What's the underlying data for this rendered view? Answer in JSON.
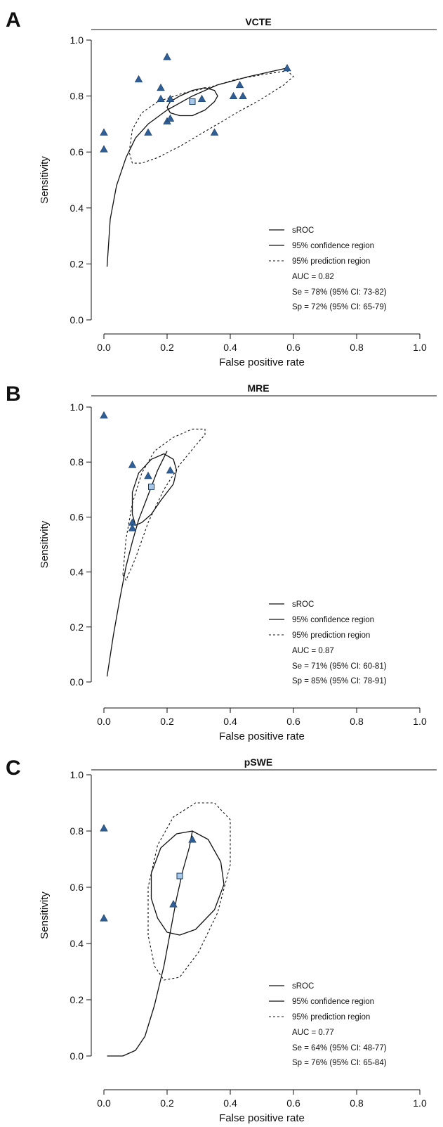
{
  "chart_data": [
    {
      "type": "scatter",
      "panel_label": "A",
      "title": "VCTE",
      "xlabel": "False positive rate",
      "ylabel": "Sensitivity",
      "xlim": [
        0,
        1
      ],
      "ylim": [
        0,
        1
      ],
      "xticks": [
        0.0,
        0.2,
        0.4,
        0.6,
        0.8,
        1.0
      ],
      "xtick_labels": [
        "0.0",
        "0.2",
        "0.4",
        "0.6",
        "0.8",
        "1.0"
      ],
      "yticks": [
        0.0,
        0.2,
        0.4,
        0.6,
        0.8,
        1.0
      ],
      "ytick_labels": [
        "0.0",
        "0.2",
        "0.4",
        "0.6",
        "0.8",
        "1.0"
      ],
      "grid": false,
      "legend_position": "bottom-right",
      "colors": {
        "study_marker": "#2f5f97",
        "summary_point": "#a9c8e8",
        "line": "#111111"
      },
      "studies": {
        "x": [
          0.0,
          0.0,
          0.11,
          0.14,
          0.18,
          0.18,
          0.2,
          0.2,
          0.21,
          0.21,
          0.31,
          0.35,
          0.41,
          0.43,
          0.44,
          0.58
        ],
        "y": [
          0.67,
          0.61,
          0.86,
          0.67,
          0.83,
          0.79,
          0.94,
          0.71,
          0.79,
          0.72,
          0.79,
          0.67,
          0.8,
          0.84,
          0.8,
          0.9
        ]
      },
      "summary_point": {
        "x": 0.28,
        "y": 0.78
      },
      "sroc": {
        "x": [
          0.01,
          0.02,
          0.04,
          0.07,
          0.1,
          0.14,
          0.2,
          0.28,
          0.36,
          0.46,
          0.58
        ],
        "y": [
          0.19,
          0.36,
          0.48,
          0.58,
          0.65,
          0.7,
          0.75,
          0.8,
          0.84,
          0.87,
          0.9
        ]
      },
      "confidence_region": {
        "x": [
          0.2,
          0.21,
          0.24,
          0.28,
          0.32,
          0.35,
          0.36,
          0.35,
          0.32,
          0.28,
          0.24,
          0.21,
          0.2
        ],
        "y": [
          0.76,
          0.78,
          0.8,
          0.82,
          0.83,
          0.82,
          0.8,
          0.78,
          0.75,
          0.73,
          0.73,
          0.74,
          0.76
        ]
      },
      "prediction_region": {
        "x": [
          0.08,
          0.09,
          0.12,
          0.17,
          0.25,
          0.33,
          0.42,
          0.52,
          0.58,
          0.6,
          0.57,
          0.5,
          0.42,
          0.33,
          0.24,
          0.17,
          0.12,
          0.09,
          0.08
        ],
        "y": [
          0.6,
          0.68,
          0.74,
          0.78,
          0.81,
          0.83,
          0.86,
          0.88,
          0.89,
          0.87,
          0.84,
          0.79,
          0.74,
          0.68,
          0.62,
          0.58,
          0.56,
          0.56,
          0.6
        ]
      },
      "legend": {
        "sroc": "sROC",
        "confidence": "95% confidence region",
        "prediction": "95% prediction region"
      },
      "stats": {
        "auc": "AUC = 0.82",
        "se": "Se = 78% (95% CI: 73-82)",
        "sp": "Sp = 72% (95% CI: 65-79)"
      }
    },
    {
      "type": "scatter",
      "panel_label": "B",
      "title": "MRE",
      "xlabel": "False positive rate",
      "ylabel": "Sensitivity",
      "xlim": [
        0,
        1
      ],
      "ylim": [
        0,
        1
      ],
      "xticks": [
        0.0,
        0.2,
        0.4,
        0.6,
        0.8,
        1.0
      ],
      "xtick_labels": [
        "0.0",
        "0.2",
        "0.4",
        "0.6",
        "0.8",
        "1.0"
      ],
      "yticks": [
        0.0,
        0.2,
        0.4,
        0.6,
        0.8,
        1.0
      ],
      "ytick_labels": [
        "0.0",
        "0.2",
        "0.4",
        "0.6",
        "0.8",
        "1.0"
      ],
      "grid": false,
      "legend_position": "bottom-right",
      "colors": {
        "study_marker": "#2f5f97",
        "summary_point": "#a9c8e8",
        "line": "#111111"
      },
      "studies": {
        "x": [
          0.0,
          0.09,
          0.09,
          0.09,
          0.14,
          0.21
        ],
        "y": [
          0.97,
          0.79,
          0.58,
          0.56,
          0.75,
          0.77
        ]
      },
      "summary_point": {
        "x": 0.15,
        "y": 0.71
      },
      "sroc": {
        "x": [
          0.01,
          0.03,
          0.05,
          0.07,
          0.09,
          0.11,
          0.14,
          0.17,
          0.2
        ],
        "y": [
          0.02,
          0.17,
          0.3,
          0.42,
          0.51,
          0.59,
          0.68,
          0.77,
          0.84
        ]
      },
      "confidence_region": {
        "x": [
          0.09,
          0.09,
          0.11,
          0.15,
          0.19,
          0.22,
          0.23,
          0.22,
          0.18,
          0.15,
          0.12,
          0.1,
          0.09
        ],
        "y": [
          0.61,
          0.69,
          0.76,
          0.81,
          0.83,
          0.81,
          0.77,
          0.72,
          0.66,
          0.61,
          0.58,
          0.57,
          0.61
        ]
      },
      "prediction_region": {
        "x": [
          0.06,
          0.07,
          0.09,
          0.12,
          0.16,
          0.22,
          0.28,
          0.32,
          0.32,
          0.29,
          0.24,
          0.19,
          0.14,
          0.1,
          0.07,
          0.06
        ],
        "y": [
          0.39,
          0.52,
          0.65,
          0.76,
          0.84,
          0.89,
          0.92,
          0.92,
          0.9,
          0.86,
          0.79,
          0.7,
          0.58,
          0.45,
          0.37,
          0.39
        ]
      },
      "legend": {
        "sroc": "sROC",
        "confidence": "95% confidence region",
        "prediction": "95% prediction region"
      },
      "stats": {
        "auc": "AUC = 0.87",
        "se": "Se = 71% (95% CI: 60-81)",
        "sp": "Sp = 85% (95% CI: 78-91)"
      }
    },
    {
      "type": "scatter",
      "panel_label": "C",
      "title": "pSWE",
      "xlabel": "False positive rate",
      "ylabel": "Sensitivity",
      "xlim": [
        0,
        1
      ],
      "ylim": [
        0,
        1
      ],
      "xticks": [
        0.0,
        0.2,
        0.4,
        0.6,
        0.8,
        1.0
      ],
      "xtick_labels": [
        "0.0",
        "0.2",
        "0.4",
        "0.6",
        "0.8",
        "1.0"
      ],
      "yticks": [
        0.0,
        0.2,
        0.4,
        0.6,
        0.8,
        1.0
      ],
      "ytick_labels": [
        "0.0",
        "0.2",
        "0.4",
        "0.6",
        "0.8",
        "1.0"
      ],
      "grid": false,
      "legend_position": "bottom-right",
      "colors": {
        "study_marker": "#2f5f97",
        "summary_point": "#a9c8e8",
        "line": "#111111"
      },
      "studies": {
        "x": [
          0.0,
          0.0,
          0.22,
          0.28
        ],
        "y": [
          0.81,
          0.49,
          0.54,
          0.77
        ]
      },
      "summary_point": {
        "x": 0.24,
        "y": 0.64
      },
      "sroc": {
        "x": [
          0.01,
          0.06,
          0.1,
          0.13,
          0.16,
          0.19,
          0.21,
          0.23,
          0.25,
          0.27,
          0.28
        ],
        "y": [
          0.0,
          0.0,
          0.02,
          0.07,
          0.18,
          0.32,
          0.44,
          0.56,
          0.66,
          0.74,
          0.8
        ]
      },
      "confidence_region": {
        "x": [
          0.15,
          0.15,
          0.18,
          0.23,
          0.28,
          0.33,
          0.37,
          0.38,
          0.35,
          0.29,
          0.24,
          0.2,
          0.17,
          0.15
        ],
        "y": [
          0.56,
          0.65,
          0.74,
          0.79,
          0.8,
          0.77,
          0.69,
          0.61,
          0.52,
          0.45,
          0.43,
          0.44,
          0.49,
          0.56
        ]
      },
      "prediction_region": {
        "x": [
          0.14,
          0.14,
          0.17,
          0.22,
          0.29,
          0.35,
          0.4,
          0.4,
          0.36,
          0.3,
          0.24,
          0.19,
          0.16,
          0.14
        ],
        "y": [
          0.43,
          0.6,
          0.75,
          0.85,
          0.9,
          0.9,
          0.84,
          0.68,
          0.51,
          0.37,
          0.28,
          0.27,
          0.32,
          0.43
        ]
      },
      "legend": {
        "sroc": "sROC",
        "confidence": "95% confidence region",
        "prediction": "95% prediction region"
      },
      "stats": {
        "auc": "AUC = 0.77",
        "se": "Se = 64% (95% CI: 48-77)",
        "sp": "Sp = 76% (95% CI: 65-84)"
      }
    }
  ]
}
